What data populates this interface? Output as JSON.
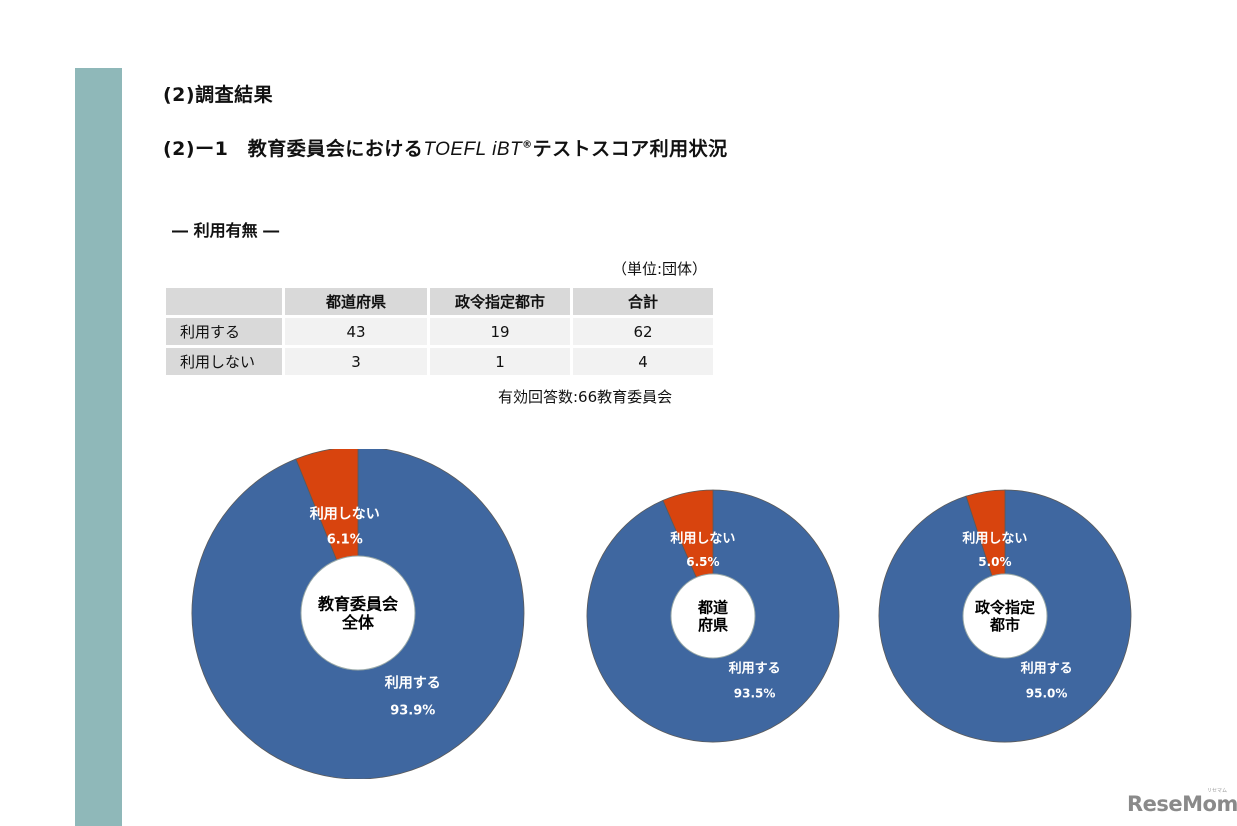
{
  "page": {
    "section_title": "(2)調査結果",
    "subsection": {
      "prefix": "(2)ー1　教育委員会における",
      "brand": "TOEFL iBT",
      "reg_mark": "®",
      "suffix": "テストスコア利用状況"
    },
    "heading": "― 利用有無 ―",
    "unit_note": "（単位:団体）",
    "response_note": "有効回答数:66教育委員会",
    "logo": "ReseMom",
    "logo_sub": "リセマム"
  },
  "table": {
    "headers": [
      "",
      "都道府県",
      "政令指定都市",
      "合計"
    ],
    "rows": [
      {
        "label": "利用する",
        "values": [
          "43",
          "19",
          "62"
        ]
      },
      {
        "label": "利用しない",
        "values": [
          "3",
          "1",
          "4"
        ]
      }
    ]
  },
  "colors": {
    "use": "#3f67a0",
    "not_use": "#d8440e",
    "sidebar": "#8fb8b9",
    "header_bg": "#d9d9d9",
    "cell_bg": "#f2f2f2"
  },
  "chart_data": [
    {
      "type": "pie",
      "variant": "donut",
      "title": "教育委員会全体",
      "center_label": [
        "教育委員会",
        "全体"
      ],
      "categories": [
        "利用する",
        "利用しない"
      ],
      "values": [
        93.9,
        6.1
      ],
      "labels": [
        "93.9%",
        "6.1%"
      ],
      "counts": [
        62,
        4
      ]
    },
    {
      "type": "pie",
      "variant": "donut",
      "title": "都道府県",
      "center_label": [
        "都道",
        "府県"
      ],
      "categories": [
        "利用する",
        "利用しない"
      ],
      "values": [
        93.5,
        6.5
      ],
      "labels": [
        "93.5%",
        "6.5%"
      ],
      "counts": [
        43,
        3
      ]
    },
    {
      "type": "pie",
      "variant": "donut",
      "title": "政令指定都市",
      "center_label": [
        "政令指定",
        "都市"
      ],
      "categories": [
        "利用する",
        "利用しない"
      ],
      "values": [
        95.0,
        5.0
      ],
      "labels": [
        "95.0%",
        "5.0%"
      ],
      "counts": [
        19,
        1
      ]
    }
  ]
}
